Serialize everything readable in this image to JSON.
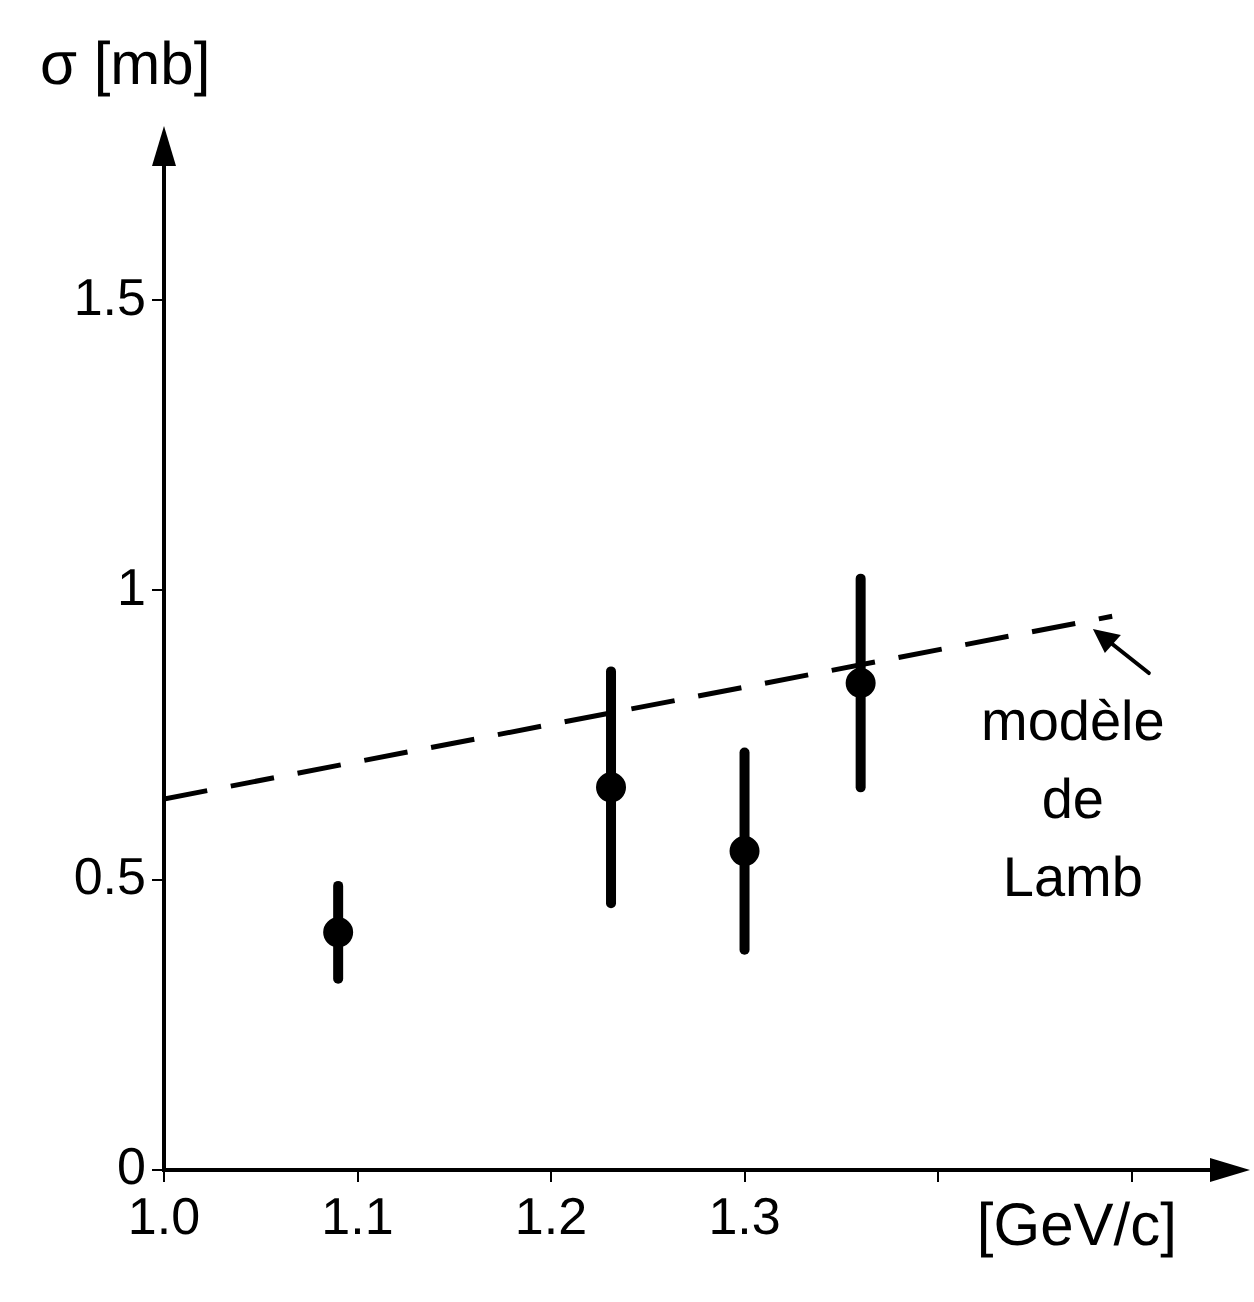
{
  "chart_data": {
    "type": "scatter",
    "xlabel": "[GeV/c]",
    "ylabel": "σ [mb]",
    "xlim": [
      1.0,
      1.555
    ],
    "ylim": [
      0,
      1.78
    ],
    "xticks": [
      {
        "value": 1.0,
        "label": "1.0"
      },
      1.1,
      1.2,
      1.3,
      {
        "value": 1.4,
        "label": null
      },
      {
        "value": 1.5,
        "label": null
      }
    ],
    "yticks": [
      0,
      0.5,
      1,
      1.5
    ],
    "grid": false,
    "legend": false,
    "marker": "circle",
    "series": [
      {
        "color": "#000000",
        "x": [
          1.09,
          1.231,
          1.3,
          1.36
        ],
        "values": [
          0.41,
          0.66,
          0.55,
          0.84
        ],
        "errors": [
          0.08,
          0.2,
          0.17,
          0.18
        ]
      },
      {
        "type": "line",
        "color": "#000000",
        "x": [
          1.0,
          1.49
        ],
        "values": [
          0.64,
          0.955
        ],
        "line_style": "dashed",
        "marker": "none"
      }
    ],
    "annotations": [
      {
        "text": "modèle de Lamb",
        "x": 1.48,
        "y": 0.94
      }
    ]
  }
}
